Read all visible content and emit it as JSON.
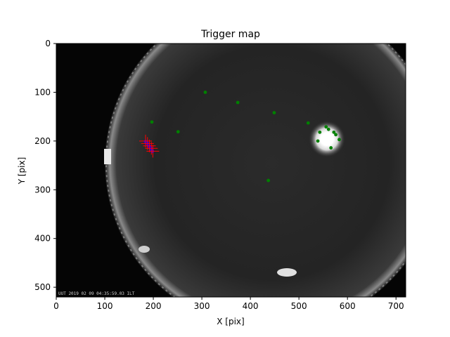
{
  "chart_data": {
    "type": "scatter",
    "title": "Trigger map",
    "xlabel": "X [pix]",
    "ylabel": "Y [pix]",
    "xlim": [
      0,
      720
    ],
    "ylim": [
      520,
      0
    ],
    "y_inverted": true,
    "x_ticks": [
      0,
      100,
      200,
      300,
      400,
      500,
      600,
      700
    ],
    "y_ticks": [
      0,
      100,
      200,
      300,
      400,
      500
    ],
    "grid": false,
    "legend": "none",
    "background": "all-sky camera image (fisheye)",
    "timestamp_overlay": "UUT 2019 02 09 04:35:59.03 ILT",
    "series": [
      {
        "color": "#008000",
        "marker": "dot",
        "points": [
          {
            "x": 307,
            "y": 100
          },
          {
            "x": 374,
            "y": 121
          },
          {
            "x": 449,
            "y": 142
          },
          {
            "x": 197,
            "y": 161
          },
          {
            "x": 251,
            "y": 181
          },
          {
            "x": 519,
            "y": 163
          },
          {
            "x": 556,
            "y": 171
          },
          {
            "x": 561,
            "y": 176
          },
          {
            "x": 543,
            "y": 182
          },
          {
            "x": 572,
            "y": 182
          },
          {
            "x": 576,
            "y": 187
          },
          {
            "x": 583,
            "y": 197
          },
          {
            "x": 539,
            "y": 200
          },
          {
            "x": 566,
            "y": 214
          },
          {
            "x": 437,
            "y": 281
          }
        ]
      },
      {
        "color": "#0000ff",
        "marker": "dot",
        "points": [
          {
            "x": 184,
            "y": 201
          },
          {
            "x": 186,
            "y": 203
          },
          {
            "x": 188,
            "y": 205
          },
          {
            "x": 189,
            "y": 207
          },
          {
            "x": 190,
            "y": 209
          },
          {
            "x": 192,
            "y": 211
          },
          {
            "x": 193,
            "y": 213
          },
          {
            "x": 195,
            "y": 215
          },
          {
            "x": 196,
            "y": 217
          },
          {
            "x": 197,
            "y": 219
          },
          {
            "x": 198,
            "y": 221
          }
        ]
      },
      {
        "color": "#ff0000",
        "marker": "plus",
        "points": [
          {
            "x": 184,
            "y": 200
          },
          {
            "x": 188,
            "y": 205
          },
          {
            "x": 192,
            "y": 210
          },
          {
            "x": 196,
            "y": 215
          },
          {
            "x": 199,
            "y": 221
          }
        ]
      }
    ]
  }
}
